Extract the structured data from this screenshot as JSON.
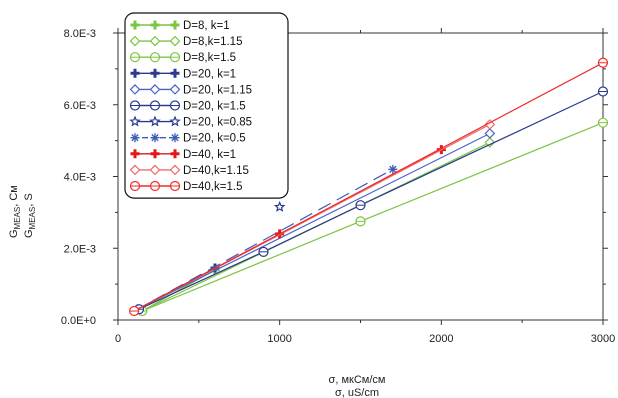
{
  "chart_data": {
    "type": "line",
    "xlim": [
      0,
      3000
    ],
    "ylim": [
      0,
      0.008
    ],
    "x_ticks": [
      0,
      1000,
      2000,
      3000
    ],
    "x_tick_labels": [
      "0",
      "1000",
      "2000",
      "3000"
    ],
    "y_ticks": [
      0,
      0.002,
      0.004,
      0.006,
      0.008
    ],
    "y_tick_labels": [
      "0.0E+0",
      "2.0E-3",
      "4.0E-3",
      "6.0E-3",
      "8.0E-3"
    ],
    "xlabel_lines": [
      "σ, мкСм/см",
      "σ, uS/cm"
    ],
    "ylabel_lines": [
      "G",
      "MEAS",
      ", См",
      "G",
      "MEAS",
      ", S"
    ],
    "grid": false,
    "legend_position": "top-left",
    "series": [
      {
        "name": "D=8, k=1",
        "color": "#7dc443",
        "marker": "plus",
        "dash": "",
        "points": [
          [
            150,
            0.00025
          ],
          [
            600,
            0.0014
          ]
        ]
      },
      {
        "name": "D=8,k=1.15",
        "color": "#7dc443",
        "marker": "diamond",
        "dash": "",
        "points": [
          [
            150,
            0.00025
          ],
          [
            2300,
            0.00495
          ]
        ]
      },
      {
        "name": "D=8,k=1.5",
        "color": "#7dc443",
        "marker": "circle",
        "dash": "",
        "points": [
          [
            150,
            0.00025
          ],
          [
            1500,
            0.00275
          ],
          [
            3000,
            0.0055
          ]
        ]
      },
      {
        "name": "D=20, k=1",
        "color": "#2b3a8f",
        "marker": "plus",
        "dash": "",
        "points": [
          [
            100,
            0.00025
          ],
          [
            600,
            0.00145
          ]
        ]
      },
      {
        "name": "D=20, k=1.15",
        "color": "#4a63c7",
        "marker": "diamond",
        "dash": "",
        "points": [
          [
            120,
            0.0003
          ],
          [
            2300,
            0.0052
          ]
        ]
      },
      {
        "name": "D=20, k=1.5",
        "color": "#2b3a8f",
        "marker": "circle",
        "dash": "",
        "points": [
          [
            130,
            0.0003
          ],
          [
            900,
            0.0019
          ],
          [
            1500,
            0.0032
          ],
          [
            3000,
            0.00637
          ]
        ]
      },
      {
        "name": "D=20, k=0.85",
        "color": "#2b3a8f",
        "marker": "star",
        "dash": "",
        "points": [
          [
            1000,
            0.00315
          ]
        ]
      },
      {
        "name": "D=20, k=0.5",
        "color": "#3b5bb5",
        "marker": "asterisk",
        "dash": "14,7",
        "points": [
          [
            100,
            0.00025
          ],
          [
            1700,
            0.0042
          ]
        ]
      },
      {
        "name": "D=40, k=1",
        "color": "#e01818",
        "marker": "plus",
        "dash": "",
        "points": [
          [
            100,
            0.00025
          ],
          [
            1000,
            0.0024
          ],
          [
            2000,
            0.00475
          ]
        ]
      },
      {
        "name": "D=40,k=1.15",
        "color": "#f06a6a",
        "marker": "diamond",
        "dash": "",
        "points": [
          [
            100,
            0.00025
          ],
          [
            2300,
            0.00545
          ]
        ]
      },
      {
        "name": "D=40,k=1.5",
        "color": "#ee2d2d",
        "marker": "circle",
        "dash": "",
        "points": [
          [
            100,
            0.00025
          ],
          [
            3000,
            0.00717
          ]
        ]
      }
    ]
  }
}
